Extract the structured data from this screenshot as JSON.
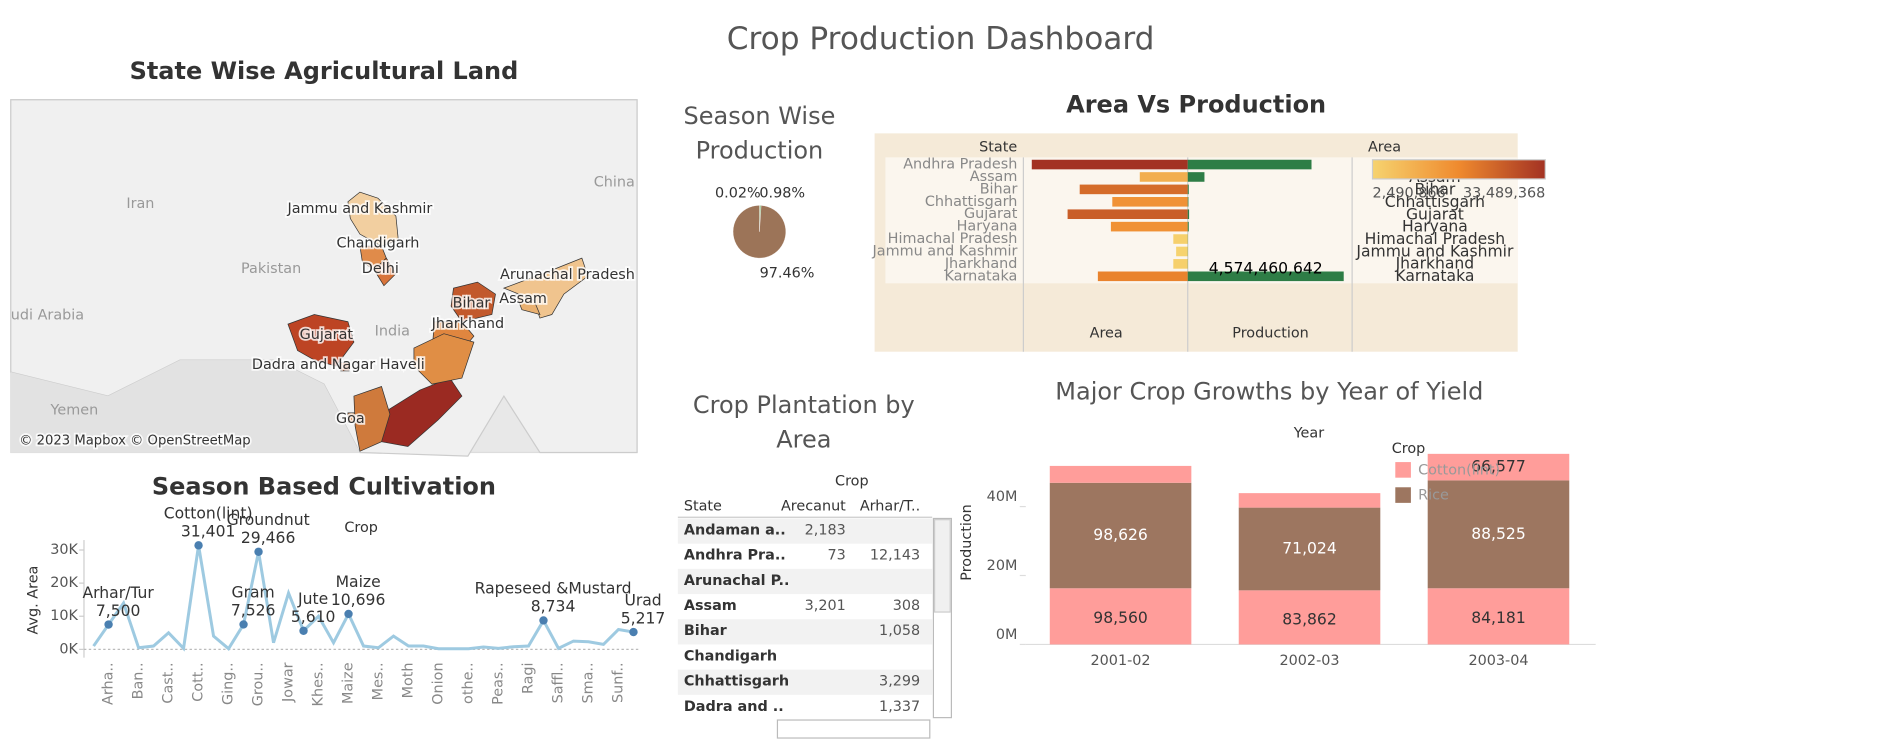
{
  "title": "Crop Production Dashboard",
  "chart_data": [
    {
      "type": "map",
      "title": "State Wise Agricultural Land",
      "places": [
        "Iran",
        "Pakistan",
        "India",
        "China",
        "udi Arabia",
        "Yemen"
      ],
      "attribution": "© 2023 Mapbox © OpenStreetMap",
      "regions": [
        {
          "name": "Jammu and Kashmir",
          "color": "#f2cfa0"
        },
        {
          "name": "Chandigarh",
          "color": "#e08b4a"
        },
        {
          "name": "Delhi",
          "color": "#d8743a"
        },
        {
          "name": "Arunachal Pradesh",
          "color": "#f0c48e"
        },
        {
          "name": "Assam",
          "color": "#e9b070"
        },
        {
          "name": "Bihar",
          "color": "#c2592c"
        },
        {
          "name": "Jharkhand",
          "color": "#e0863f"
        },
        {
          "name": "Gujarat",
          "color": "#bd4424"
        },
        {
          "name": "Dadra and Nagar Haveli",
          "color": "#c8602e"
        },
        {
          "name": "Goa",
          "color": "#d9803e"
        },
        {
          "name": null,
          "color": "#9b2a22"
        },
        {
          "name": null,
          "color": "#cf7a3c"
        },
        {
          "name": null,
          "color": "#e08e45"
        }
      ]
    },
    {
      "type": "pie",
      "title": "Season Wise Production",
      "values": [
        0.02,
        0.98,
        97.46
      ],
      "value_labels": [
        "0.02%",
        "0.98%",
        "97.46%"
      ],
      "colors": [
        "#4e79a7",
        "#8cc084",
        "#9c7458"
      ]
    },
    {
      "type": "diverging_bar",
      "title": "Area Vs Production",
      "row_header": "State",
      "column_header": "Area",
      "categories": [
        "Andhra Pradesh",
        "Assam",
        "Bihar",
        "Chhattisgarh",
        "Gujarat",
        "Haryana",
        "Himachal Pradesh",
        "Jammu and Kashmir",
        "Jharkhand",
        "Karnataka"
      ],
      "series": [
        {
          "name": "Area",
          "values": [
            33489368,
            10300000,
            23200000,
            16200000,
            25800000,
            16500000,
            3100000,
            2490866,
            3100000,
            19300000
          ],
          "color_scale": [
            "#f6d36f",
            "#ef8a2e",
            "#a33223"
          ]
        },
        {
          "name": "Production",
          "values": [
            3630000000,
            490000000,
            30000000,
            20000000,
            40000000,
            30000000,
            5000000,
            5000000,
            5000000,
            4574460642
          ],
          "color": "#2e7d46",
          "value_labels": [
            null,
            null,
            null,
            null,
            null,
            null,
            null,
            null,
            null,
            "4,574,460,642"
          ]
        }
      ],
      "legend": [
        {
          "value": 2490866,
          "label": "2,490,866"
        },
        {
          "value": 33489368,
          "label": "33,489,368"
        }
      ]
    },
    {
      "type": "line",
      "title": "Season Based Cultivation",
      "column_header": "Crop",
      "ylabel": "Avg. Area",
      "categories": [
        null,
        "Arha..",
        null,
        "Ban..",
        null,
        "Cast..",
        null,
        "Cott..",
        null,
        "Ging..",
        null,
        "Grou..",
        null,
        "Jowar",
        null,
        "Khes..",
        null,
        "Maize",
        null,
        "Mes..",
        null,
        "Moth",
        null,
        "Onion",
        null,
        "othe..",
        null,
        "Peas..",
        null,
        "Ragi",
        null,
        "Saffl..",
        null,
        "Sma..",
        null,
        "Sunf..",
        null
      ],
      "values": [
        1000,
        7500,
        14000,
        500,
        1000,
        5000,
        300,
        31401,
        4000,
        200,
        7526,
        29466,
        2000,
        17000,
        5610,
        10000,
        2000,
        10696,
        1000,
        500,
        4000,
        1000,
        1000,
        200,
        200,
        200,
        700,
        300,
        800,
        1000,
        8734,
        300,
        2500,
        2300,
        1500,
        6000,
        5217
      ],
      "point_labels": [
        null,
        "Arhar/Tur",
        null,
        null,
        null,
        null,
        null,
        "Cotton(lint)",
        null,
        null,
        "Gram",
        "Groundnut",
        null,
        null,
        "Jute",
        null,
        null,
        "Maize",
        null,
        null,
        null,
        null,
        null,
        null,
        null,
        null,
        null,
        null,
        null,
        null,
        "Rapeseed &Mustard",
        null,
        null,
        null,
        null,
        null,
        "Urad"
      ],
      "value_labels": [
        null,
        "7,500",
        null,
        null,
        null,
        null,
        null,
        "31,401",
        null,
        null,
        "7,526",
        "29,466",
        null,
        null,
        "5,610",
        null,
        null,
        "10,696",
        null,
        null,
        null,
        null,
        null,
        null,
        null,
        null,
        null,
        null,
        null,
        null,
        "8,734",
        null,
        null,
        null,
        null,
        null,
        "5,217"
      ],
      "color": "#9ecae1",
      "marker_color": "#4a7fb0",
      "ylim": [
        -2500,
        33000
      ],
      "yticks": [
        {
          "value": 0,
          "label": "0K"
        },
        {
          "value": 10000,
          "label": "10K"
        },
        {
          "value": 20000,
          "label": "20K"
        },
        {
          "value": 30000,
          "label": "30K"
        }
      ]
    },
    {
      "type": "table",
      "title": "Crop Plantation by Area",
      "column_group": "Crop",
      "columns": [
        "State",
        "Arecanut",
        "Arhar/T.."
      ],
      "rows": [
        [
          "Andaman a..",
          "2,183",
          null
        ],
        [
          "Andhra Pra..",
          "73",
          "12,143"
        ],
        [
          "Arunachal P..",
          null,
          null
        ],
        [
          "Assam",
          "3,201",
          "308"
        ],
        [
          "Bihar",
          null,
          "1,058"
        ],
        [
          "Chandigarh",
          null,
          null
        ],
        [
          "Chhattisgarh",
          null,
          "3,299"
        ],
        [
          "Dadra and ..",
          null,
          "1,337"
        ]
      ]
    },
    {
      "type": "stacked_bar",
      "title": "Major Crop Growths by Year of Yield",
      "xlabel": "Year",
      "ylabel": "Production",
      "legend_title": "Crop",
      "categories": [
        "2001-02",
        "2002-03",
        "2003-04"
      ],
      "series": [
        {
          "name": "Cotton(lint)",
          "color": "#ff9d9a",
          "values": [
            16300000,
            15700000,
            16300000
          ],
          "labels": [
            "98,560",
            "83,862",
            "84,181"
          ],
          "label_color": "#333"
        },
        {
          "name": "Rice",
          "color": "#9d7660",
          "values": [
            30600000,
            24000000,
            31300000
          ],
          "labels": [
            "98,626",
            "71,024",
            "88,525"
          ],
          "label_color": "#fff"
        },
        {
          "name": null,
          "color": "#ff9d9a",
          "values": [
            4900000,
            4200000,
            7700000
          ],
          "labels": [
            null,
            null,
            "66,577"
          ],
          "label_color": "#333"
        }
      ],
      "ylim": [
        0,
        55000000
      ],
      "yticks": [
        {
          "value": 0,
          "label": "0M"
        },
        {
          "value": 20000000,
          "label": "20M"
        },
        {
          "value": 40000000,
          "label": "40M"
        }
      ]
    }
  ]
}
